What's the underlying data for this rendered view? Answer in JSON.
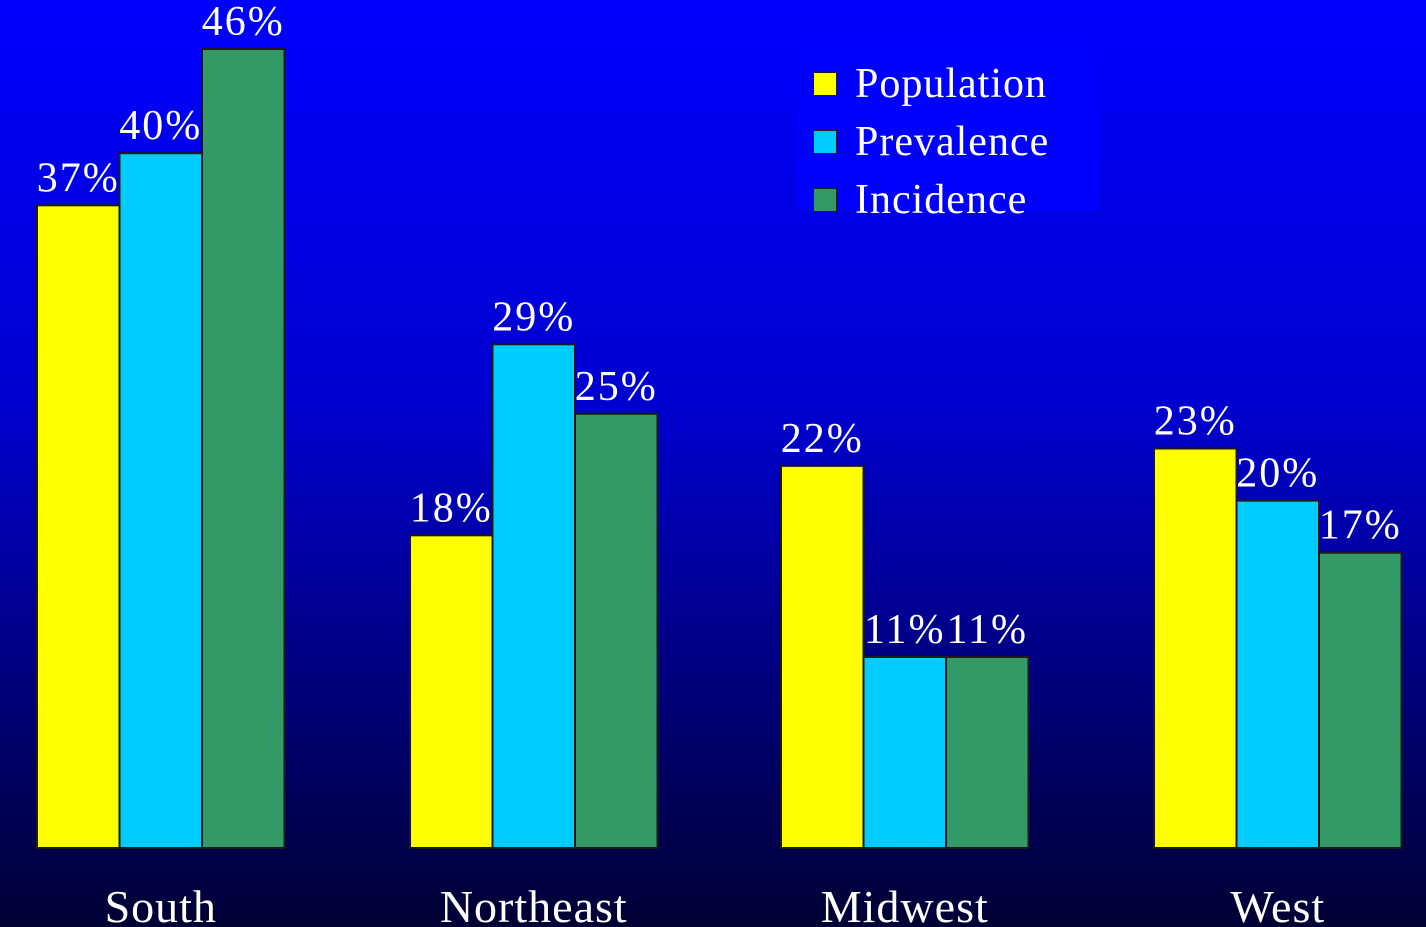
{
  "chart_data": {
    "type": "bar",
    "categories": [
      "South",
      "Northeast",
      "Midwest",
      "West"
    ],
    "series": [
      {
        "name": "Population",
        "values": [
          37,
          18,
          22,
          23
        ],
        "labels": [
          "37%",
          "18%",
          "22%",
          "23%"
        ],
        "color": "#ffff00"
      },
      {
        "name": "Prevalence",
        "values": [
          40,
          29,
          11,
          20
        ],
        "labels": [
          "40%",
          "29%",
          "11%",
          "20%"
        ],
        "color": "#00ccff"
      },
      {
        "name": "Incidence",
        "values": [
          46,
          25,
          11,
          17
        ],
        "labels": [
          "46%",
          "25%",
          "11%",
          "17%"
        ],
        "color": "#339966"
      }
    ],
    "ylim": [
      0,
      46
    ],
    "legend": "top-right",
    "grid": false,
    "background": "#0000ff",
    "text_color": "#ffffff"
  }
}
